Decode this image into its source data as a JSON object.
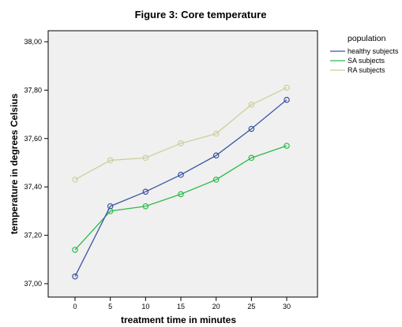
{
  "chart_data": {
    "type": "line",
    "title": "Figure 3: Core temperature",
    "xlabel": "treatment time in minutes",
    "ylabel": "temperature in degrees Celsius",
    "x": [
      0,
      5,
      10,
      15,
      20,
      25,
      30
    ],
    "x_tick_labels": [
      "0",
      "5",
      "10",
      "15",
      "20",
      "25",
      "30"
    ],
    "ylim": [
      37.0,
      38.0
    ],
    "y_ticks": [
      37.0,
      37.2,
      37.4,
      37.6,
      37.8,
      38.0
    ],
    "y_tick_labels": [
      "37,00",
      "37,20",
      "37,40",
      "37,60",
      "37,80",
      "38,00"
    ],
    "grid": false,
    "legend_title": "population",
    "legend_placement": "right",
    "plot_background": "#f0f0f0",
    "series": [
      {
        "name": "healthy subjects",
        "color": "#3a54a4",
        "values": [
          37.03,
          37.32,
          37.38,
          37.45,
          37.53,
          37.64,
          37.76
        ]
      },
      {
        "name": "SA subjects",
        "color": "#2ebb4a",
        "values": [
          37.14,
          37.3,
          37.32,
          37.37,
          37.43,
          37.52,
          37.57
        ]
      },
      {
        "name": "RA subjects",
        "color": "#d0ce9e",
        "values": [
          37.43,
          37.51,
          37.52,
          37.58,
          37.62,
          37.74,
          37.81
        ]
      }
    ]
  }
}
